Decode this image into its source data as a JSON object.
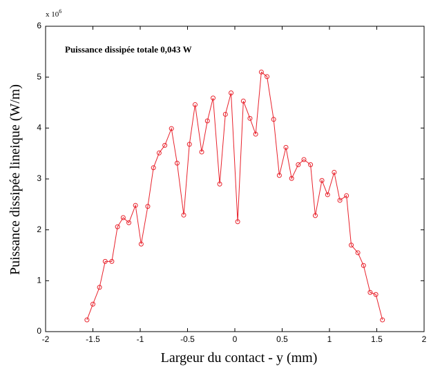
{
  "chart_data": {
    "type": "line",
    "annotation": "Puissance dissipée totale 0,043 W",
    "y_multiplier": {
      "base": "x 10",
      "exponent": "6"
    },
    "xlabel": "Largeur du contact - y (mm)",
    "ylabel": "Puissance dissipée lineique (W/m)",
    "x": [
      -1.563,
      -1.5,
      -1.43,
      -1.37,
      -1.3,
      -1.24,
      -1.18,
      -1.12,
      -1.05,
      -0.99,
      -0.92,
      -0.86,
      -0.8,
      -0.74,
      -0.67,
      -0.61,
      -0.54,
      -0.48,
      -0.42,
      -0.35,
      -0.29,
      -0.23,
      -0.16,
      -0.1,
      -0.04,
      0.03,
      0.09,
      0.16,
      0.22,
      0.28,
      0.34,
      0.41,
      0.47,
      0.54,
      0.6,
      0.67,
      0.73,
      0.8,
      0.85,
      0.92,
      0.98,
      1.05,
      1.11,
      1.18,
      1.23,
      1.3,
      1.36,
      1.43,
      1.49,
      1.56
    ],
    "series": [
      {
        "color": "#e8202a",
        "values": [
          0.23,
          0.54,
          0.87,
          1.38,
          1.38,
          2.06,
          2.24,
          2.14,
          2.48,
          1.72,
          2.46,
          3.22,
          3.51,
          3.66,
          3.99,
          3.31,
          2.29,
          3.68,
          4.46,
          3.53,
          4.14,
          4.59,
          2.9,
          4.27,
          4.69,
          2.16,
          4.53,
          4.19,
          3.88,
          5.1,
          5.01,
          4.17,
          3.07,
          3.62,
          3.01,
          3.28,
          3.38,
          3.28,
          2.28,
          2.97,
          2.69,
          3.13,
          2.58,
          2.67,
          1.7,
          1.55,
          1.3,
          0.77,
          0.73,
          0.23
        ]
      }
    ],
    "xlim": [
      -2,
      2
    ],
    "xticks": [
      -2,
      -1.5,
      -1,
      -0.5,
      0,
      0.5,
      1,
      1.5,
      2
    ],
    "ylim": [
      0,
      6
    ],
    "yticks": [
      0,
      1,
      2,
      3,
      4,
      5,
      6
    ]
  }
}
